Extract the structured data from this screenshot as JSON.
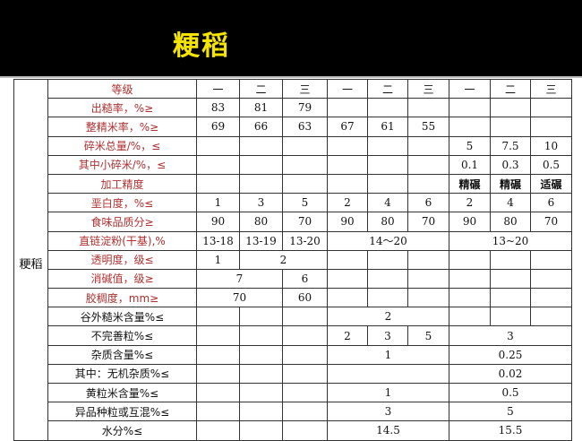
{
  "title": "粳稻",
  "side_label": "粳稻",
  "table": {
    "rows": [
      {
        "label": "等级",
        "red": true,
        "cells": [
          {
            "v": "一"
          },
          {
            "v": "二"
          },
          {
            "v": "三"
          },
          {
            "v": "一"
          },
          {
            "v": "二"
          },
          {
            "v": "三"
          },
          {
            "v": "一"
          },
          {
            "v": "二"
          },
          {
            "v": "三"
          }
        ]
      },
      {
        "label": "出糙率，%≥",
        "red": true,
        "cells": [
          {
            "v": "83"
          },
          {
            "v": "81"
          },
          {
            "v": "79"
          },
          {
            "v": ""
          },
          {
            "v": ""
          },
          {
            "v": ""
          },
          {
            "v": ""
          },
          {
            "v": ""
          },
          {
            "v": ""
          }
        ]
      },
      {
        "label": "整精米率，%≥",
        "red": true,
        "cells": [
          {
            "v": "69"
          },
          {
            "v": "66"
          },
          {
            "v": "63"
          },
          {
            "v": "67"
          },
          {
            "v": "61"
          },
          {
            "v": "55"
          },
          {
            "v": ""
          },
          {
            "v": ""
          },
          {
            "v": ""
          }
        ]
      },
      {
        "label": "碎米总量/%，≤",
        "red": true,
        "cells": [
          {
            "v": ""
          },
          {
            "v": ""
          },
          {
            "v": ""
          },
          {
            "v": ""
          },
          {
            "v": ""
          },
          {
            "v": ""
          },
          {
            "v": "5"
          },
          {
            "v": "7.5"
          },
          {
            "v": "10"
          }
        ]
      },
      {
        "label": "其中小碎米/%，≤",
        "red": true,
        "cells": [
          {
            "v": ""
          },
          {
            "v": ""
          },
          {
            "v": ""
          },
          {
            "v": ""
          },
          {
            "v": ""
          },
          {
            "v": ""
          },
          {
            "v": "0.1"
          },
          {
            "v": "0.3"
          },
          {
            "v": "0.5"
          }
        ]
      },
      {
        "label": "加工精度",
        "red": true,
        "cells": [
          {
            "v": ""
          },
          {
            "v": ""
          },
          {
            "v": ""
          },
          {
            "v": ""
          },
          {
            "v": ""
          },
          {
            "v": ""
          },
          {
            "v": "精碾",
            "b": true
          },
          {
            "v": "精碾",
            "b": true
          },
          {
            "v": "适碾",
            "b": true
          }
        ]
      },
      {
        "label": "垩白度，%≤",
        "red": true,
        "cells": [
          {
            "v": "1"
          },
          {
            "v": "3"
          },
          {
            "v": "5"
          },
          {
            "v": "2"
          },
          {
            "v": "4"
          },
          {
            "v": "6"
          },
          {
            "v": "2"
          },
          {
            "v": "4"
          },
          {
            "v": "6"
          }
        ]
      },
      {
        "label": "食味品质分≥",
        "red": true,
        "cells": [
          {
            "v": "90"
          },
          {
            "v": "80"
          },
          {
            "v": "70"
          },
          {
            "v": "90"
          },
          {
            "v": "80"
          },
          {
            "v": "70"
          },
          {
            "v": "90"
          },
          {
            "v": "80"
          },
          {
            "v": "70"
          }
        ]
      },
      {
        "label": "直链淀粉(干基),%",
        "red": true,
        "cells": [
          {
            "v": "13-18"
          },
          {
            "v": "13-19"
          },
          {
            "v": "13-20"
          },
          {
            "v": "14～20",
            "s": 3
          },
          {
            "v": "13~20",
            "s": 3
          }
        ]
      },
      {
        "label": "透明度，级≤",
        "red": true,
        "cells": [
          {
            "v": "1"
          },
          {
            "v": "2",
            "s": 2
          },
          {
            "v": ""
          },
          {
            "v": ""
          },
          {
            "v": ""
          },
          {
            "v": ""
          },
          {
            "v": ""
          },
          {
            "v": ""
          }
        ]
      },
      {
        "label": "消碱值，级≥",
        "red": true,
        "cells": [
          {
            "v": "7",
            "s": 2
          },
          {
            "v": "6"
          },
          {
            "v": ""
          },
          {
            "v": ""
          },
          {
            "v": ""
          },
          {
            "v": ""
          },
          {
            "v": ""
          },
          {
            "v": ""
          }
        ]
      },
      {
        "label": "胶稠度，mm≥",
        "red": true,
        "cells": [
          {
            "v": "70",
            "s": 2
          },
          {
            "v": "60"
          },
          {
            "v": ""
          },
          {
            "v": ""
          },
          {
            "v": ""
          },
          {
            "v": ""
          },
          {
            "v": ""
          },
          {
            "v": ""
          }
        ]
      },
      {
        "label": "谷外糙米含量%≤",
        "red": false,
        "cells": [
          {
            "v": ""
          },
          {
            "v": ""
          },
          {
            "v": ""
          },
          {
            "v": "2",
            "s": 3
          },
          {
            "v": ""
          },
          {
            "v": ""
          },
          {
            "v": ""
          }
        ]
      },
      {
        "label": "不完善粒%≤",
        "red": false,
        "cells": [
          {
            "v": ""
          },
          {
            "v": ""
          },
          {
            "v": ""
          },
          {
            "v": "2"
          },
          {
            "v": "3"
          },
          {
            "v": "5"
          },
          {
            "v": "3",
            "s": 3
          }
        ]
      },
      {
        "label": "杂质含量%≤",
        "red": false,
        "cells": [
          {
            "v": ""
          },
          {
            "v": ""
          },
          {
            "v": ""
          },
          {
            "v": "1",
            "s": 3
          },
          {
            "v": "0.25",
            "s": 3
          }
        ]
      },
      {
        "label": "其中：无机杂质%≤",
        "red": false,
        "cells": [
          {
            "v": ""
          },
          {
            "v": ""
          },
          {
            "v": ""
          },
          {
            "v": "",
            "s": 3
          },
          {
            "v": "0.02",
            "s": 3
          }
        ]
      },
      {
        "label": "黄粒米含量%≤",
        "red": false,
        "cells": [
          {
            "v": ""
          },
          {
            "v": ""
          },
          {
            "v": ""
          },
          {
            "v": "1",
            "s": 3
          },
          {
            "v": "0.5",
            "s": 3
          }
        ]
      },
      {
        "label": "异品种粒或互混%≤",
        "red": false,
        "cells": [
          {
            "v": ""
          },
          {
            "v": ""
          },
          {
            "v": ""
          },
          {
            "v": "3",
            "s": 3
          },
          {
            "v": "5",
            "s": 3
          }
        ]
      },
      {
        "label": "水分%≤",
        "red": false,
        "cells": [
          {
            "v": ""
          },
          {
            "v": ""
          },
          {
            "v": ""
          },
          {
            "v": "14.5",
            "s": 3
          },
          {
            "v": "15.5",
            "s": 3
          }
        ]
      }
    ]
  }
}
